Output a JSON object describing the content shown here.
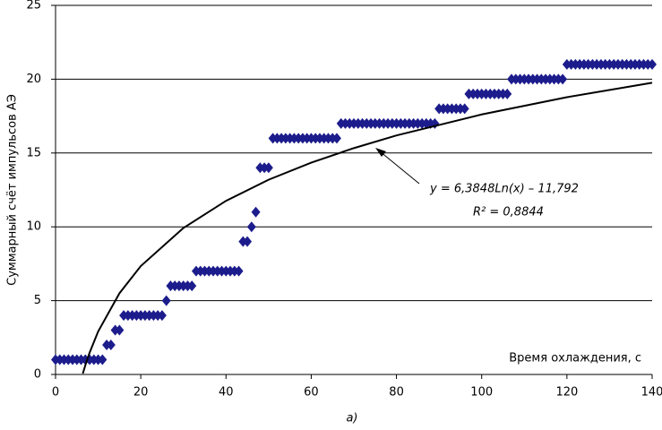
{
  "chart_data": {
    "type": "scatter",
    "ylabel": "Суммарный счёт импульсов АЭ",
    "xlabel": "Время охлаждения, с",
    "caption": "а)",
    "annotations": [
      "y = 6,3848Ln(x) – 11,792",
      "R² = 0,8844"
    ],
    "xlim": [
      0,
      140
    ],
    "xticks": [
      0,
      20,
      40,
      60,
      80,
      100,
      120,
      140
    ],
    "ylim": [
      0,
      25
    ],
    "yticks": [
      0,
      5,
      10,
      15,
      20,
      25
    ],
    "grid": true,
    "series": [
      {
        "color": "#1c1c8c",
        "marker": "diamond",
        "x": [
          0,
          1,
          2,
          3,
          4,
          5,
          6,
          7,
          8,
          9,
          10,
          11,
          12,
          13,
          14,
          15,
          16,
          17,
          18,
          19,
          20,
          21,
          22,
          23,
          24,
          25,
          26,
          27,
          28,
          29,
          30,
          31,
          32,
          33,
          34,
          35,
          36,
          37,
          38,
          39,
          40,
          41,
          42,
          43,
          44,
          45,
          46,
          47,
          48,
          49,
          50,
          51,
          52,
          53,
          54,
          55,
          56,
          57,
          58,
          59,
          60,
          61,
          62,
          63,
          64,
          65,
          66,
          67,
          68,
          69,
          70,
          71,
          72,
          73,
          74,
          75,
          76,
          77,
          78,
          79,
          80,
          81,
          82,
          83,
          84,
          85,
          86,
          87,
          88,
          89,
          90,
          91,
          92,
          93,
          94,
          95,
          96,
          97,
          98,
          99,
          100,
          101,
          102,
          103,
          104,
          105,
          106,
          107,
          108,
          109,
          110,
          111,
          112,
          113,
          114,
          115,
          116,
          117,
          118,
          119,
          120,
          121,
          122,
          123,
          124,
          125,
          126,
          127,
          128,
          129,
          130,
          131,
          132,
          133,
          134,
          135,
          136,
          137,
          138,
          139,
          140
        ],
        "values": [
          1,
          1,
          1,
          1,
          1,
          1,
          1,
          1,
          1,
          1,
          1,
          1,
          2,
          2,
          3,
          3,
          4,
          4,
          4,
          4,
          4,
          4,
          4,
          4,
          4,
          4,
          5,
          6,
          6,
          6,
          6,
          6,
          6,
          7,
          7,
          7,
          7,
          7,
          7,
          7,
          7,
          7,
          7,
          7,
          9,
          9,
          10,
          11,
          14,
          14,
          14,
          16,
          16,
          16,
          16,
          16,
          16,
          16,
          16,
          16,
          16,
          16,
          16,
          16,
          16,
          16,
          16,
          17,
          17,
          17,
          17,
          17,
          17,
          17,
          17,
          17,
          17,
          17,
          17,
          17,
          17,
          17,
          17,
          17,
          17,
          17,
          17,
          17,
          17,
          17,
          18,
          18,
          18,
          18,
          18,
          18,
          18,
          19,
          19,
          19,
          19,
          19,
          19,
          19,
          19,
          19,
          19,
          20,
          20,
          20,
          20,
          20,
          20,
          20,
          20,
          20,
          20,
          20,
          20,
          20,
          21,
          21,
          21,
          21,
          21,
          21,
          21,
          21,
          21,
          21,
          21,
          21,
          21,
          21,
          21,
          21,
          21,
          21,
          21,
          21,
          21
        ]
      },
      {
        "color": "#000000",
        "marker": "line",
        "x": [
          6.4,
          7,
          8,
          10,
          15,
          20,
          30,
          40,
          50,
          60,
          70,
          80,
          100,
          120,
          140
        ],
        "values": [
          0.06,
          0.63,
          1.48,
          2.91,
          5.5,
          7.34,
          9.92,
          11.76,
          13.19,
          14.35,
          15.33,
          16.19,
          17.61,
          18.78,
          19.76
        ]
      }
    ]
  }
}
